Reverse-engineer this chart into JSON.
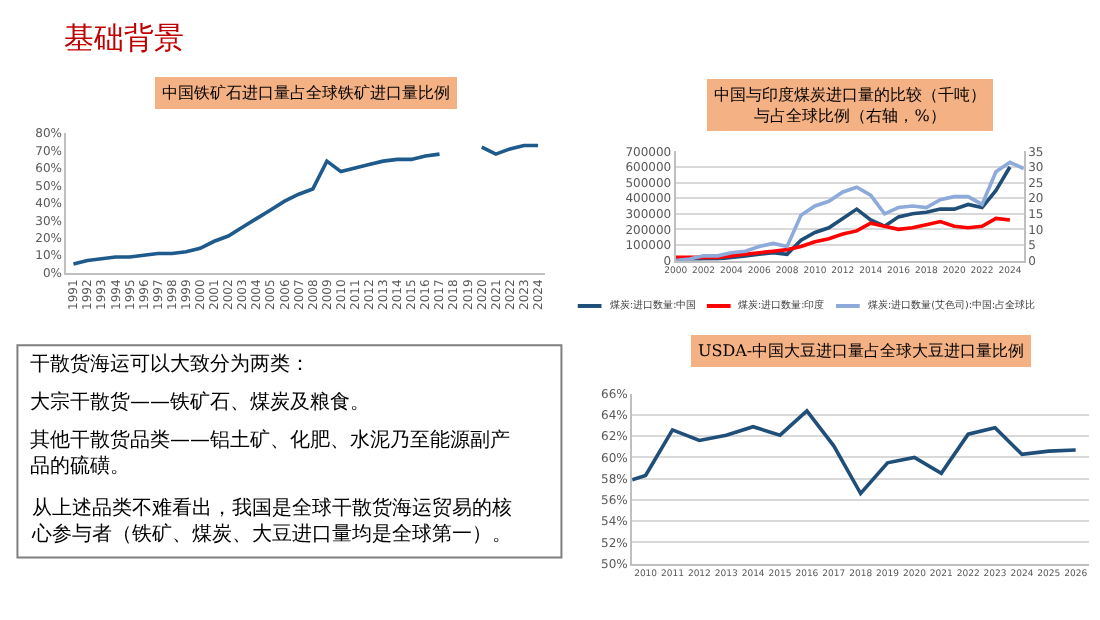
{
  "chart_data": [
    {
      "type": "other",
      "title": "基础背景",
      "annotations": [
        "干散货海运可以大致分为两类：",
        "大宗干散货——铁矿石、煤炭及粮食。",
        "其他干散货品类——铝土矿、化肥、水泥乃至能源副产品的硫磺。",
        "从上述品类不难看出，我国是全球干散货海运贸易的核心参与者（铁矿、煤炭、大豆进口量均是全球第一）。"
      ]
    },
    {
      "type": "line",
      "title": "中国铁矿石进口量占全球铁矿进口量比例",
      "categories": [
        "1991",
        "1992",
        "1993",
        "1994",
        "1995",
        "1996",
        "1997",
        "1998",
        "1999",
        "2000",
        "2001",
        "2002",
        "2003",
        "2004",
        "2005",
        "2006",
        "2007",
        "2008",
        "2009",
        "2010",
        "2011",
        "2012",
        "2013",
        "2014",
        "2015",
        "2016",
        "2017",
        "2018",
        "2019",
        "2020",
        "2021",
        "2022",
        "2023",
        "2024"
      ],
      "series": [
        {
          "color": "#1f5a8c",
          "values": [
            5,
            7,
            8,
            9,
            9,
            10,
            11,
            11,
            12,
            14,
            18,
            21,
            26,
            31,
            36,
            41,
            45,
            48,
            64,
            58,
            60,
            62,
            64,
            65,
            65,
            67,
            68,
            null,
            null,
            72,
            68,
            71,
            73,
            73
          ]
        }
      ],
      "ylim": [
        0,
        80
      ],
      "yticks": [
        {
          "value": 0,
          "label": "0%"
        },
        {
          "value": 10,
          "label": "10%"
        },
        {
          "value": 20,
          "label": "20%"
        },
        {
          "value": 30,
          "label": "30%"
        },
        {
          "value": 40,
          "label": "40%"
        },
        {
          "value": 50,
          "label": "50%"
        },
        {
          "value": 60,
          "label": "60%"
        },
        {
          "value": 70,
          "label": "70%"
        },
        {
          "value": 80,
          "label": "80%"
        }
      ],
      "grid": false
    },
    {
      "type": "line",
      "title": "中国与印度煤炭进口量的比较（千吨）与占全球比例（右轴，%）",
      "x": [
        2000,
        2001,
        2002,
        2003,
        2004,
        2005,
        2006,
        2007,
        2008,
        2009,
        2010,
        2011,
        2012,
        2013,
        2014,
        2015,
        2016,
        2017,
        2018,
        2019,
        2020,
        2021,
        2022,
        2023,
        2024
      ],
      "series": [
        {
          "name": "煤炭:进口数量:中国",
          "color": "#1f4e79",
          "values": [
            0,
            0,
            10000,
            10000,
            20000,
            30000,
            40000,
            50000,
            40000,
            130000,
            180000,
            210000,
            270000,
            330000,
            260000,
            220000,
            280000,
            300000,
            310000,
            330000,
            330000,
            360000,
            340000,
            450000,
            600000
          ]
        },
        {
          "name": "煤炭:进口数量:印度",
          "color": "#ff0000",
          "values": [
            20000,
            20000,
            20000,
            20000,
            30000,
            40000,
            50000,
            60000,
            70000,
            90000,
            120000,
            140000,
            170000,
            190000,
            240000,
            220000,
            200000,
            210000,
            230000,
            250000,
            220000,
            210000,
            220000,
            270000,
            260000
          ]
        },
        {
          "name": "煤炭:进口数量(艾色司):中国:占全球比",
          "color": "#8eaadb",
          "axis": "y2",
          "x": [
            2000,
            2001,
            2002,
            2003,
            2004,
            2005,
            2006,
            2007,
            2008,
            2009,
            2010,
            2011,
            2012,
            2013,
            2014,
            2015,
            2016,
            2017,
            2018,
            2019,
            2020,
            2021,
            2022,
            2023,
            2024,
            2025
          ],
          "values": [
            0,
            0.5,
            1.5,
            1.5,
            2.5,
            3,
            4.5,
            5.5,
            4.5,
            14.5,
            17.5,
            19,
            22,
            23.5,
            21,
            15,
            17,
            17.5,
            17,
            19.5,
            20.5,
            20.5,
            18,
            28.5,
            31.5,
            29.5
          ]
        }
      ],
      "xlim": [
        2000,
        2025
      ],
      "xticks": [
        2000,
        2002,
        2004,
        2006,
        2008,
        2010,
        2012,
        2014,
        2016,
        2018,
        2020,
        2022,
        2024
      ],
      "ylim": [
        0,
        700000
      ],
      "yticks": [
        0,
        100000,
        200000,
        300000,
        400000,
        500000,
        600000,
        700000
      ],
      "y2lim": [
        0,
        35
      ],
      "y2ticks": [
        0,
        5,
        10,
        15,
        20,
        25,
        30,
        35
      ],
      "grid": "y",
      "legend": "bottom"
    },
    {
      "type": "line",
      "title": "USDA-中国大豆进口量占全球大豆进口量比例",
      "x": [
        2009.5,
        2010,
        2011,
        2012,
        2013,
        2014,
        2015,
        2016,
        2017,
        2018,
        2019,
        2020,
        2021,
        2022,
        2023,
        2024,
        2025,
        2026
      ],
      "series": [
        {
          "color": "#1f4e79",
          "values": [
            57.9,
            58.3,
            62.6,
            61.6,
            62.1,
            62.9,
            62.1,
            64.4,
            61.1,
            56.6,
            59.5,
            60.0,
            58.5,
            62.2,
            62.8,
            60.3,
            60.6,
            60.7
          ]
        }
      ],
      "xlim": [
        2009.5,
        2026.5
      ],
      "xticks": [
        2010,
        2011,
        2012,
        2013,
        2014,
        2015,
        2016,
        2017,
        2018,
        2019,
        2020,
        2021,
        2022,
        2023,
        2024,
        2025,
        2026
      ],
      "ylim": [
        50,
        66
      ],
      "yticks": [
        {
          "value": 50,
          "label": "50%"
        },
        {
          "value": 52,
          "label": "52%"
        },
        {
          "value": 54,
          "label": "54%"
        },
        {
          "value": 56,
          "label": "56%"
        },
        {
          "value": 58,
          "label": "58%"
        },
        {
          "value": 60,
          "label": "60%"
        },
        {
          "value": 62,
          "label": "62%"
        },
        {
          "value": 64,
          "label": "64%"
        },
        {
          "value": 66,
          "label": "66%"
        }
      ],
      "grid": "y"
    }
  ]
}
